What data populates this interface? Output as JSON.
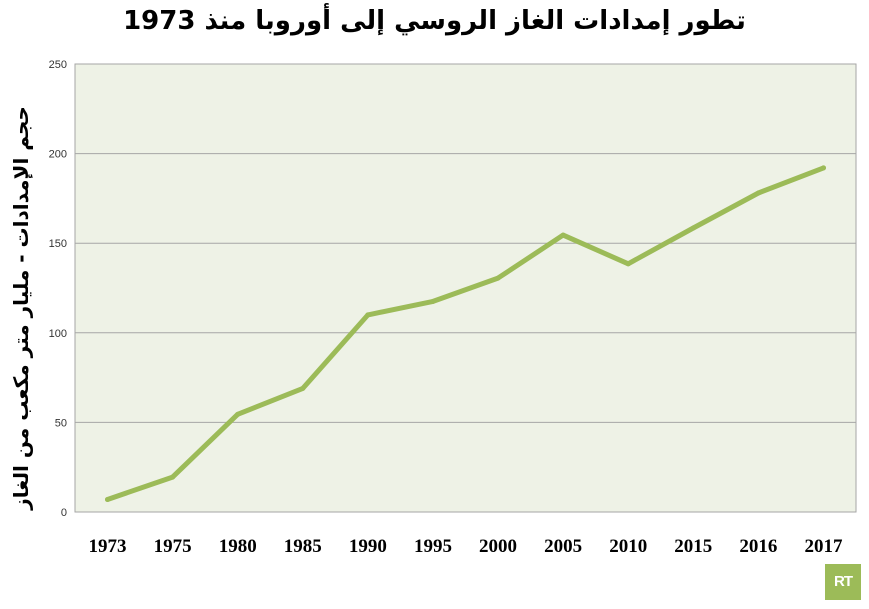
{
  "chart_data": {
    "type": "line",
    "title": "تطور إمدادات الغاز الروسي إلى أوروبا منذ 1973",
    "xlabel": "",
    "ylabel": "حجم الإمدادات - مليار متر مكعب من الغاز",
    "categories": [
      "1973",
      "1975",
      "1980",
      "1985",
      "1990",
      "1995",
      "2000",
      "2005",
      "2010",
      "2015",
      "2016",
      "2017"
    ],
    "series": [
      {
        "values": [
          7,
          19.5,
          54.5,
          69,
          110,
          117.5,
          130.5,
          154.5,
          138.5,
          158.5,
          178,
          192
        ]
      }
    ],
    "ylim": [
      0,
      250
    ],
    "yticks": [
      "0",
      "50",
      "100",
      "150",
      "200",
      "250"
    ],
    "grid": true,
    "colors": {
      "line": "#9cbb58",
      "plot_background": "#eef2e6",
      "grid": "#a6a6a6"
    }
  },
  "logo": {
    "text": "RT"
  }
}
